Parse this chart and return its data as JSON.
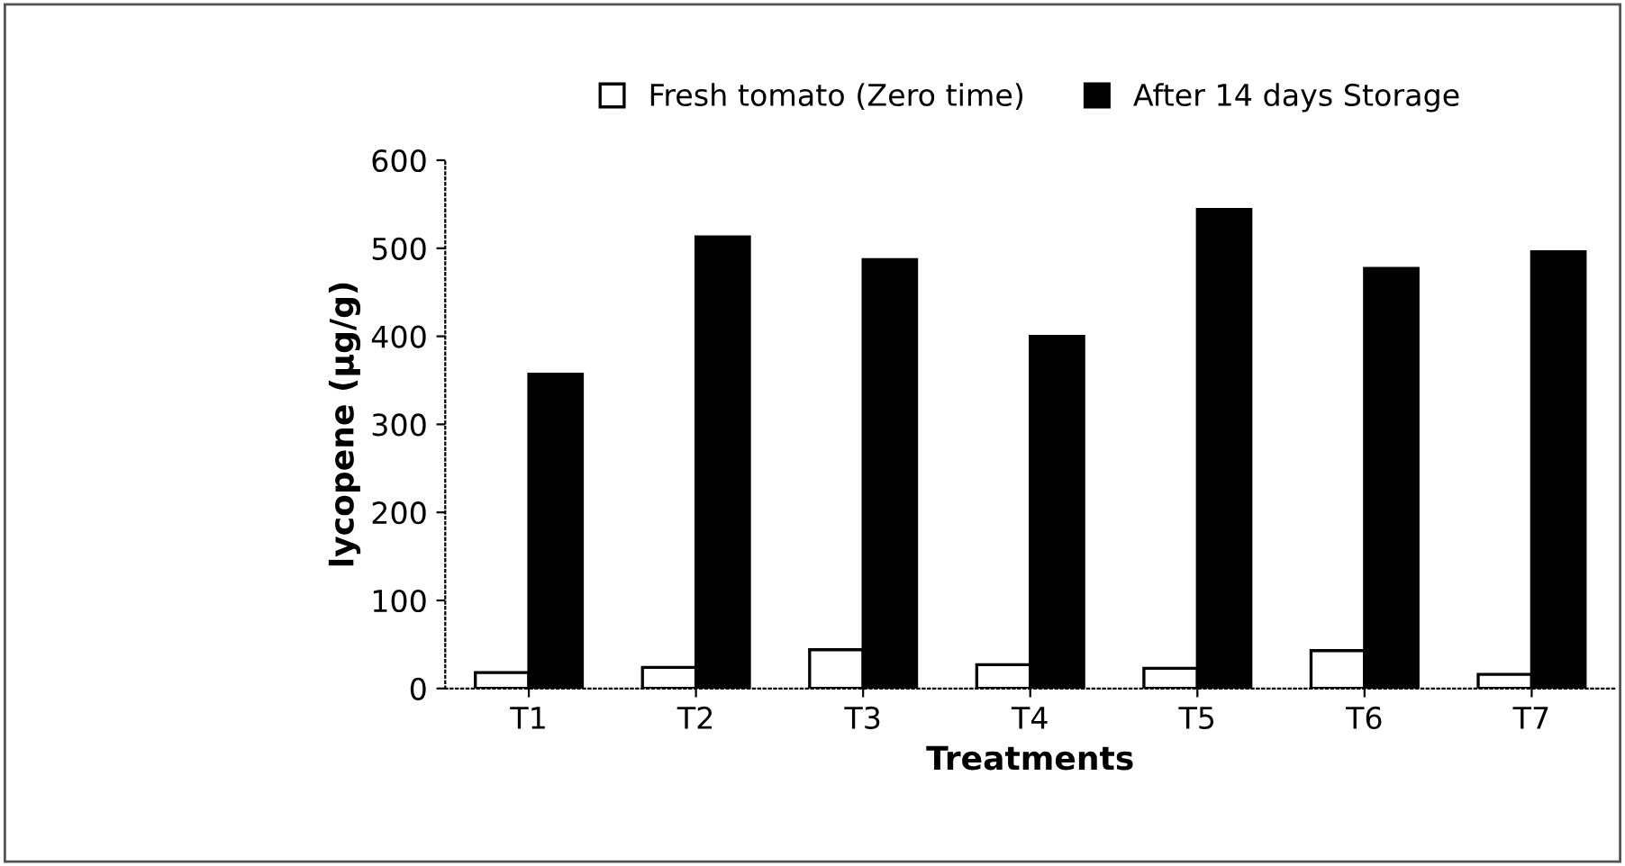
{
  "chart_data": {
    "type": "bar",
    "xlabel": "Treatments",
    "ylabel": "lycopene (µg/g)",
    "categories": [
      "T1",
      "T2",
      "T3",
      "T4",
      "T5",
      "T6",
      "T7"
    ],
    "series": [
      {
        "name": "Fresh tomato (Zero time)",
        "color": "#ffffff",
        "values": [
          18,
          24,
          44,
          27,
          23,
          43,
          16
        ]
      },
      {
        "name": "After 14 days Storage",
        "color": "#000000",
        "values": [
          357,
          513,
          487,
          400,
          544,
          477,
          496
        ]
      }
    ],
    "ylim": [
      0,
      600
    ],
    "yticks": [
      0,
      100,
      200,
      300,
      400,
      500,
      600
    ],
    "grid": false,
    "legend": "top"
  }
}
